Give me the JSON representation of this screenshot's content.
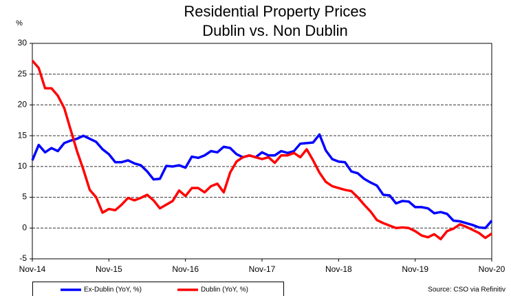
{
  "chart_data": {
    "type": "line",
    "title": "Residential Property Prices",
    "subtitle": "Dublin vs. Non Dublin",
    "y_label": "%",
    "source": "Source: CSO via Refinitiv",
    "categories": [
      "Nov-14",
      null,
      null,
      null,
      null,
      null,
      null,
      null,
      null,
      null,
      null,
      null,
      "Nov-15",
      null,
      null,
      null,
      null,
      null,
      null,
      null,
      null,
      null,
      null,
      null,
      "Nov-16",
      null,
      null,
      null,
      null,
      null,
      null,
      null,
      null,
      null,
      null,
      null,
      "Nov-17",
      null,
      null,
      null,
      null,
      null,
      null,
      null,
      null,
      null,
      null,
      null,
      "Nov-18",
      null,
      null,
      null,
      null,
      null,
      null,
      null,
      null,
      null,
      null,
      null,
      "Nov-19",
      null,
      null,
      null,
      null,
      null,
      null,
      null,
      null,
      null,
      null,
      null,
      "Nov-20"
    ],
    "series": [
      {
        "name": "Ex-Dublin (YoY, %)",
        "color": "#0000ff",
        "values": [
          11,
          13.5,
          12.3,
          13,
          12.5,
          13.8,
          14.2,
          14.5,
          15,
          14.5,
          14,
          12.8,
          12,
          10.7,
          10.7,
          11,
          10.5,
          10.2,
          9.2,
          7.9,
          8,
          10.1,
          10,
          10.2,
          9.8,
          11.6,
          11.4,
          11.8,
          12.5,
          12.3,
          13.2,
          13,
          12,
          11.5,
          11.8,
          11.5,
          12.3,
          11.8,
          11.8,
          12.5,
          12.2,
          12.5,
          13.7,
          13.8,
          13.9,
          15.2,
          12.6,
          11.2,
          10.8,
          10.7,
          9.2,
          8.9,
          8,
          7.4,
          6.9,
          5.4,
          5.3,
          4,
          4.4,
          4.3,
          3.4,
          3.4,
          3.2,
          2.4,
          2.6,
          2.3,
          1.2,
          1.1,
          0.8,
          0.5,
          0.1,
          0,
          1.2
        ]
      },
      {
        "name": "Dublin (YoY, %)",
        "color": "#ff0000",
        "values": [
          27.2,
          26,
          22.7,
          22.7,
          21.5,
          19.5,
          16,
          12.5,
          9.5,
          6.2,
          5,
          2.5,
          3.1,
          2.9,
          3.8,
          4.9,
          4.5,
          4.9,
          5.4,
          4.5,
          3.2,
          3.8,
          4.4,
          6.1,
          5.2,
          6.5,
          6.5,
          5.8,
          6.8,
          7.2,
          5.8,
          9,
          10.8,
          11.5,
          11.8,
          11.5,
          11.2,
          11.5,
          10.6,
          11.8,
          11.8,
          12.2,
          11.5,
          12.8,
          11,
          9,
          7.5,
          6.8,
          6.5,
          6.2,
          6,
          5,
          3.8,
          2.7,
          1.3,
          0.8,
          0.4,
          0,
          0.1,
          0,
          -0.5,
          -1.2,
          -1.5,
          -1,
          -1.8,
          -0.5,
          -0.1,
          0.6,
          0.2,
          -0.3,
          -0.8,
          -1.6,
          -0.9
        ]
      }
    ],
    "ylim": [
      -5,
      30
    ],
    "yticks": [
      -5,
      0,
      5,
      10,
      15,
      20,
      25,
      30
    ],
    "grid": true
  }
}
